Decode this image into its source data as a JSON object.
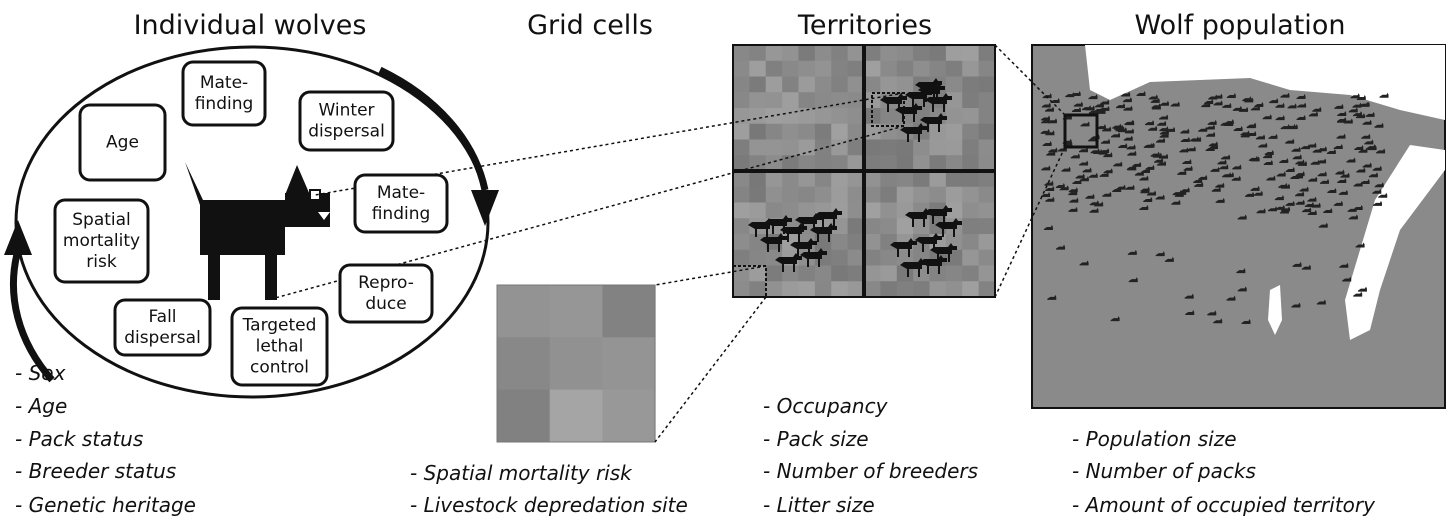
{
  "sections": [
    {
      "title": "Individual wolves",
      "boxes": [
        {
          "lines": [
            "Mate-",
            "finding"
          ]
        },
        {
          "lines": [
            "Age"
          ]
        },
        {
          "lines": [
            "Winter",
            "dispersal"
          ]
        },
        {
          "lines": [
            "Mate-",
            "finding"
          ]
        },
        {
          "lines": [
            "Spatial",
            "mortality",
            "risk"
          ]
        },
        {
          "lines": [
            "Repro-",
            "duce"
          ]
        },
        {
          "lines": [
            "Fall",
            "dispersal"
          ]
        },
        {
          "lines": [
            "Targeted",
            "lethal",
            "control"
          ]
        }
      ],
      "attributes": [
        "- Sex",
        "- Age",
        "- Pack status",
        "- Breeder status",
        "- Genetic heritage"
      ]
    },
    {
      "title": "Grid cells",
      "attributes": [
        "- Spatial mortality risk",
        "- Livestock depredation site"
      ]
    },
    {
      "title": "Territories",
      "attributes": [
        "- Occupancy",
        "- Pack size",
        "- Number of breeders",
        "- Litter size"
      ]
    },
    {
      "title": "Wolf population",
      "attributes": [
        "- Population size",
        "- Number of packs",
        "- Amount of occupied territory"
      ]
    }
  ]
}
